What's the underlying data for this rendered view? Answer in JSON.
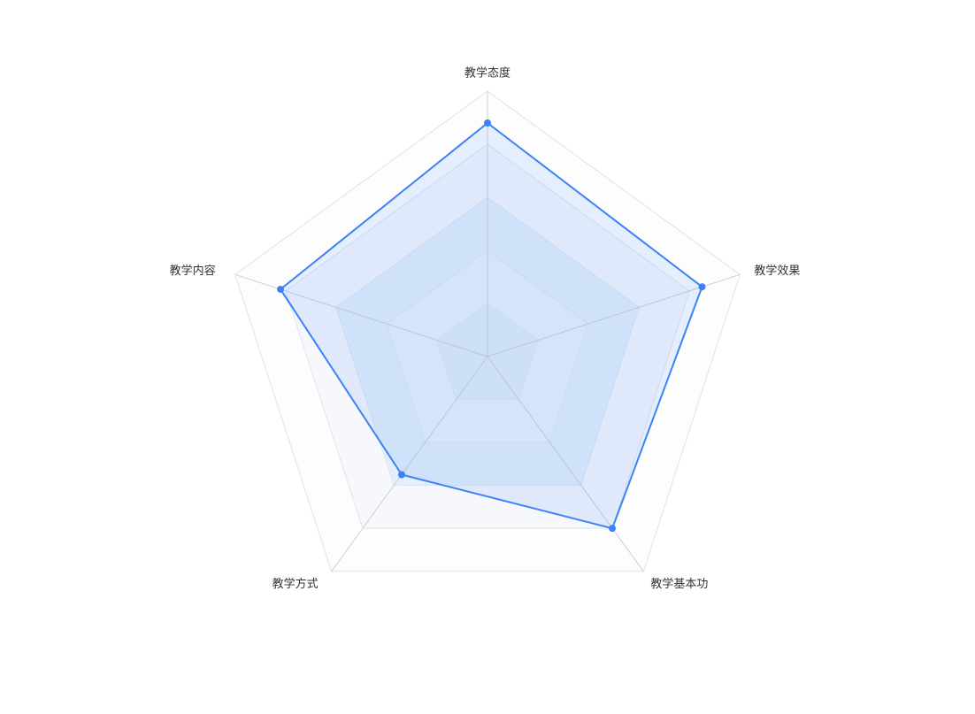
{
  "chart_data": {
    "type": "radar",
    "title": "",
    "indicators": [
      {
        "name": "教学态度",
        "max": 100
      },
      {
        "name": "教学效果",
        "max": 100
      },
      {
        "name": "教学基本功",
        "max": 100
      },
      {
        "name": "教学方式",
        "max": 100
      },
      {
        "name": "教学内容",
        "max": 100
      }
    ],
    "series": [
      {
        "values": [
          88,
          85,
          80,
          55,
          82
        ]
      }
    ],
    "split_number": 5,
    "colors": {
      "line": "#3b82f6",
      "area": "rgba(59,130,246,0.12)",
      "axis": "#cfcfcf",
      "split_fill_a": "#e3eefa",
      "split_fill_b": "#f5f8fc"
    }
  }
}
